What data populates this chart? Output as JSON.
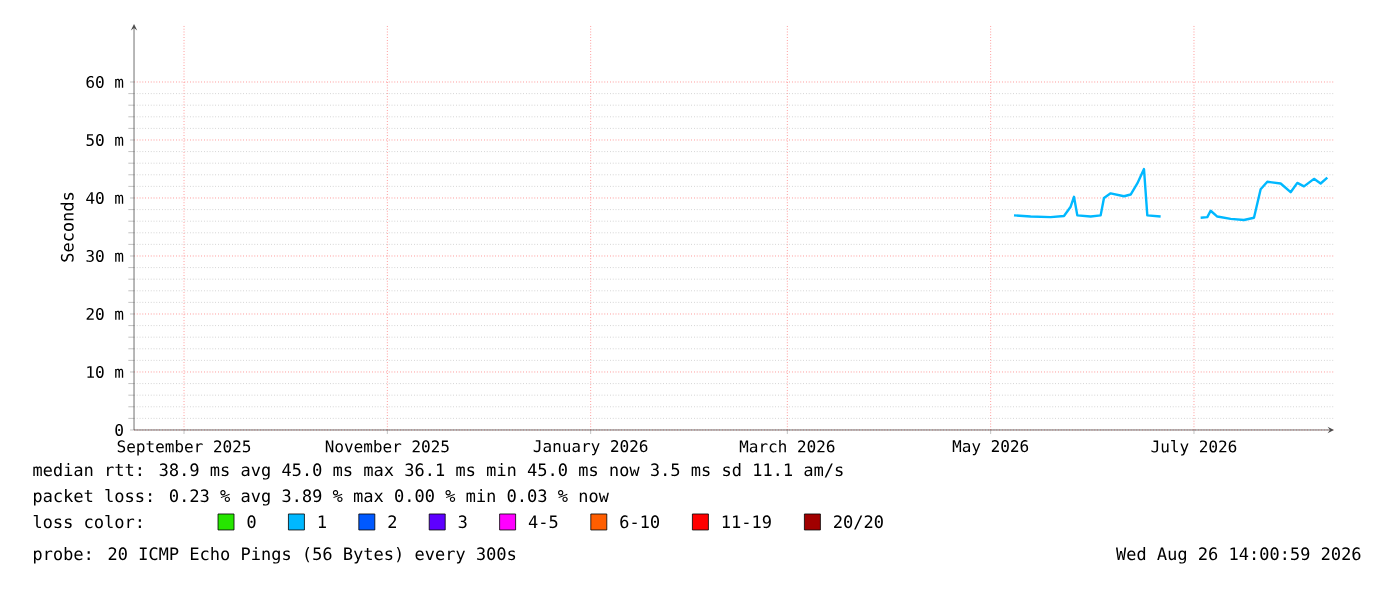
{
  "chart_data": {
    "type": "line",
    "ylabel": "Seconds",
    "x": [
      "2026-05-08",
      "2026-05-13",
      "2026-05-19",
      "2026-05-23",
      "2026-05-25",
      "2026-05-26",
      "2026-05-27",
      "2026-05-31",
      "2026-06-03",
      "2026-06-04",
      "2026-06-06",
      "2026-06-10",
      "2026-06-12",
      "2026-06-14",
      "2026-06-16",
      "2026-06-17",
      "2026-06-21",
      "2026-06-28",
      "2026-07-03",
      "2026-07-05",
      "2026-07-06",
      "2026-07-08",
      "2026-07-12",
      "2026-07-16",
      "2026-07-19",
      "2026-07-21",
      "2026-07-23",
      "2026-07-27",
      "2026-07-30",
      "2026-08-01",
      "2026-08-03",
      "2026-08-06",
      "2026-08-08",
      "2026-08-10"
    ],
    "xlim": [
      "2025-08-17",
      "2026-08-12"
    ],
    "xticks": [
      {
        "value": "2025-09-01",
        "label": "September 2025"
      },
      {
        "value": "2025-11-01",
        "label": "November 2025"
      },
      {
        "value": "2026-01-01",
        "label": "January 2026"
      },
      {
        "value": "2026-03-01",
        "label": "March 2026"
      },
      {
        "value": "2026-05-01",
        "label": "May 2026"
      },
      {
        "value": "2026-07-01",
        "label": "July 2026"
      }
    ],
    "ylim": [
      0,
      70
    ],
    "yticks": [
      0,
      {
        "value": 10,
        "label": "10 m"
      },
      {
        "value": 20,
        "label": "20 m"
      },
      {
        "value": 30,
        "label": "30 m"
      },
      {
        "value": 40,
        "label": "40 m"
      },
      {
        "value": 50,
        "label": "50 m"
      },
      {
        "value": 60,
        "label": "60 m"
      }
    ],
    "grid": true,
    "legend": "bottom",
    "legend_title": "loss color:",
    "marker": "none",
    "line_style": "solid",
    "series": [
      {
        "name": "0",
        "color": "#26e600",
        "values": [
          null,
          null,
          null,
          null,
          null,
          null,
          null,
          null,
          null,
          null,
          null,
          null,
          null,
          null,
          null,
          null,
          null,
          null,
          null,
          null,
          null,
          null,
          null,
          null,
          null,
          null,
          null,
          null,
          null,
          null,
          null,
          null,
          null,
          null
        ]
      },
      {
        "name": "1",
        "color": "#00b8ff",
        "values": [
          37.0,
          36.8,
          36.7,
          36.9,
          38.5,
          40.2,
          37.0,
          36.8,
          37.0,
          40.0,
          40.8,
          40.3,
          40.6,
          42.5,
          45.0,
          37.0,
          36.8,
          null,
          36.6,
          36.7,
          37.8,
          36.8,
          36.4,
          36.2,
          36.6,
          41.5,
          42.8,
          42.5,
          41.0,
          42.6,
          42.0,
          43.3,
          42.5,
          43.5
        ]
      },
      {
        "name": "2",
        "color": "#0059ff",
        "values": [
          null,
          null,
          null,
          null,
          null,
          null,
          null,
          null,
          null,
          null,
          null,
          null,
          null,
          null,
          null,
          null,
          null,
          null,
          null,
          null,
          null,
          null,
          null,
          null,
          null,
          null,
          null,
          null,
          null,
          null,
          null,
          null,
          null,
          null
        ]
      },
      {
        "name": "3",
        "color": "#5e00ff",
        "values": [
          null,
          null,
          null,
          null,
          null,
          null,
          null,
          null,
          null,
          null,
          null,
          null,
          null,
          null,
          null,
          null,
          null,
          null,
          null,
          null,
          null,
          null,
          null,
          null,
          null,
          null,
          null,
          null,
          null,
          null,
          null,
          null,
          null,
          null
        ]
      },
      {
        "name": "4-5",
        "color": "#ff00ff",
        "values": [
          null,
          null,
          null,
          null,
          null,
          null,
          null,
          null,
          null,
          null,
          null,
          null,
          null,
          null,
          null,
          null,
          null,
          null,
          null,
          null,
          null,
          null,
          null,
          null,
          null,
          null,
          null,
          null,
          null,
          null,
          null,
          null,
          null,
          null
        ]
      },
      {
        "name": "6-10",
        "color": "#ff5e00",
        "values": [
          null,
          null,
          null,
          null,
          null,
          null,
          null,
          null,
          null,
          null,
          null,
          null,
          null,
          null,
          null,
          null,
          null,
          null,
          null,
          null,
          null,
          null,
          null,
          null,
          null,
          null,
          null,
          null,
          null,
          null,
          null,
          null,
          null,
          null
        ]
      },
      {
        "name": "11-19",
        "color": "#ff0000",
        "values": [
          null,
          null,
          null,
          null,
          null,
          null,
          null,
          null,
          null,
          null,
          null,
          null,
          null,
          null,
          null,
          null,
          null,
          null,
          null,
          null,
          null,
          null,
          null,
          null,
          null,
          null,
          null,
          null,
          null,
          null,
          null,
          null,
          null,
          null
        ]
      },
      {
        "name": "20/20",
        "color": "#a10000",
        "values": [
          null,
          null,
          null,
          null,
          null,
          null,
          null,
          null,
          null,
          null,
          null,
          null,
          null,
          null,
          null,
          null,
          null,
          null,
          null,
          null,
          null,
          null,
          null,
          null,
          null,
          null,
          null,
          null,
          null,
          null,
          null,
          null,
          null,
          null
        ]
      }
    ],
    "annotations": [
      "median rtt:  38.9 ms avg  45.0 ms max  36.1 ms min  45.0 ms now  3.5 ms sd  11.1   am/s",
      "packet loss: 0.23 % avg  3.89 % max  0.00 % min  0.03 % now",
      "probe:       20 ICMP Echo Pings (56 Bytes) every 300s",
      "Wed Aug 26 14:00:59 2026"
    ]
  }
}
